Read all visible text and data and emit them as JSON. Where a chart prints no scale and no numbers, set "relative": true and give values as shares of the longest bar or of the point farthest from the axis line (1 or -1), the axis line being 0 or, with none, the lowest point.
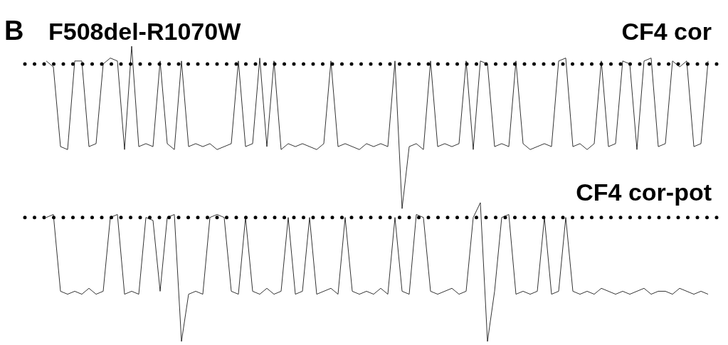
{
  "chart_data": {
    "type": "line",
    "title": "F508del-R1070W",
    "annotations": [
      "B"
    ],
    "relative": true,
    "categories": [
      null,
      null,
      null,
      null,
      null,
      null,
      null,
      null,
      null,
      null,
      null,
      null,
      null,
      null,
      null,
      null,
      null,
      null,
      null,
      null,
      null,
      null,
      null,
      null,
      null,
      null,
      null,
      null,
      null,
      null,
      null,
      null,
      null,
      null,
      null,
      null,
      null,
      null,
      null,
      null,
      null,
      null,
      null,
      null,
      null,
      null,
      null,
      null,
      null,
      null,
      null,
      null,
      null,
      null,
      null,
      null,
      null,
      null,
      null,
      null,
      null,
      null,
      null,
      null,
      null,
      null,
      null,
      null,
      null,
      null,
      null,
      null,
      null,
      null,
      null,
      null,
      null,
      null,
      null,
      null,
      null,
      null,
      null,
      null,
      null,
      null,
      null,
      null,
      null,
      null,
      null,
      null,
      null,
      null
    ],
    "series": [
      {
        "name": "CF4 cor",
        "color": "#000000",
        "values": [
          0.95,
          0.93,
          0.66,
          0.65,
          0.95,
          0.95,
          0.66,
          0.67,
          0.94,
          0.96,
          0.95,
          0.65,
          1,
          0.66,
          0.67,
          0.66,
          0.95,
          0.67,
          0.65,
          0.95,
          0.66,
          0.67,
          0.66,
          0.67,
          0.65,
          0.66,
          0.67,
          0.95,
          0.66,
          0.67,
          0.96,
          0.66,
          0.95,
          0.65,
          0.67,
          0.66,
          0.67,
          0.66,
          0.65,
          0.67,
          0.95,
          0.66,
          0.67,
          0.66,
          0.65,
          0.67,
          0.66,
          0.67,
          0.66,
          0.95,
          0.45,
          0.66,
          0.67,
          0.65,
          0.95,
          0.66,
          0.67,
          0.66,
          0.67,
          0.95,
          0.65,
          0.95,
          0.94,
          0.66,
          0.67,
          0.66,
          0.95,
          0.67,
          0.65,
          0.66,
          0.67,
          0.66,
          0.95,
          0.96,
          0.66,
          0.67,
          0.65,
          0.67,
          0.95,
          0.66,
          0.67,
          0.95,
          0.94,
          0.65,
          0.95,
          0.96,
          0.66,
          0.67,
          0.95,
          0.93,
          0.95,
          0.66,
          0.67,
          0.95
        ]
      },
      {
        "name": "CF4 cor-pot",
        "color": "#000000",
        "values": [
          0.42,
          0.43,
          0.17,
          0.16,
          0.17,
          0.16,
          0.18,
          0.16,
          0.17,
          0.42,
          0.43,
          0.16,
          0.17,
          0.16,
          0.42,
          0.41,
          0.17,
          0.42,
          0.43,
          0,
          0.16,
          0.17,
          0.16,
          0.42,
          0.43,
          0.42,
          0.17,
          0.16,
          0.42,
          0.17,
          0.16,
          0.18,
          0.16,
          0.17,
          0.42,
          0.16,
          0.17,
          0.42,
          0.16,
          0.17,
          0.18,
          0.16,
          0.42,
          0.17,
          0.16,
          0.17,
          0.16,
          0.18,
          0.16,
          0.42,
          0.17,
          0.16,
          0.43,
          0.42,
          0.17,
          0.16,
          0.17,
          0.18,
          0.16,
          0.17,
          0.42,
          0.47,
          0,
          0.17,
          0.42,
          0.43,
          0.16,
          0.17,
          0.16,
          0.17,
          0.42,
          0.16,
          0.17,
          0.42,
          0.17,
          0.16,
          0.17,
          0.16,
          0.18,
          0.17,
          0.16,
          0.17,
          0.16,
          0.17,
          0.18,
          0.16,
          0.17,
          0.17,
          0.16,
          0.18,
          0.17,
          0.16,
          0.17,
          0.16
        ]
      }
    ],
    "ref_lines": [
      {
        "axis": "y",
        "value": 0.94,
        "line_style": "dotted",
        "color": "#000000"
      },
      {
        "axis": "y",
        "value": 0.42,
        "line_style": "dotted",
        "color": "#000000"
      }
    ]
  }
}
